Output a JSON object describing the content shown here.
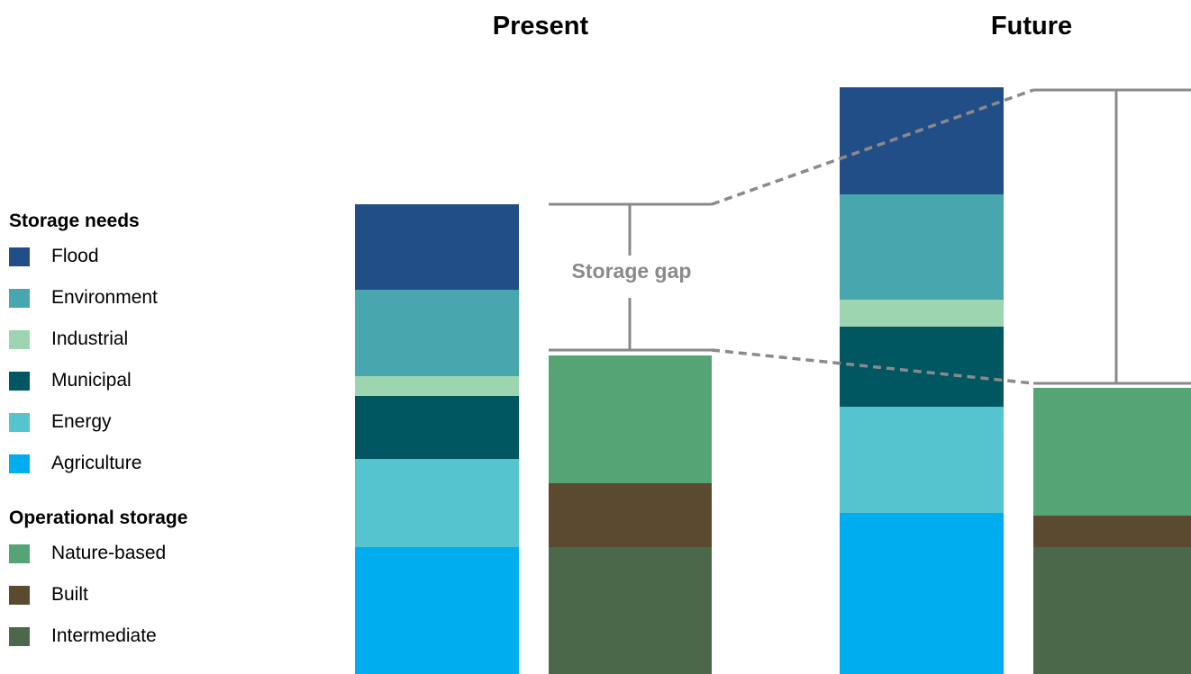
{
  "chart_data": {
    "type": "bar",
    "stacked": true,
    "groups": [
      {
        "title": "Present",
        "bars": [
          {
            "role": "needs",
            "segments": [
              {
                "name": "Agriculture",
                "value": 141
              },
              {
                "name": "Energy",
                "value": 98
              },
              {
                "name": "Municipal",
                "value": 70
              },
              {
                "name": "Industrial",
                "value": 22
              },
              {
                "name": "Environment",
                "value": 96
              },
              {
                "name": "Flood",
                "value": 95
              }
            ]
          },
          {
            "role": "operational",
            "segments": [
              {
                "name": "Intermediate",
                "value": 141
              },
              {
                "name": "Built",
                "value": 71
              },
              {
                "name": "Nature-based",
                "value": 142
              }
            ]
          }
        ],
        "gap_label": "Storage gap"
      },
      {
        "title": "Future",
        "bars": [
          {
            "role": "needs",
            "segments": [
              {
                "name": "Agriculture",
                "value": 179
              },
              {
                "name": "Energy",
                "value": 118
              },
              {
                "name": "Municipal",
                "value": 89
              },
              {
                "name": "Industrial",
                "value": 30
              },
              {
                "name": "Environment",
                "value": 117
              },
              {
                "name": "Flood",
                "value": 119
              }
            ]
          },
          {
            "role": "operational",
            "segments": [
              {
                "name": "Intermediate",
                "value": 141
              },
              {
                "name": "Built",
                "value": 35
              },
              {
                "name": "Nature-based",
                "value": 142
              }
            ]
          }
        ]
      }
    ],
    "legend": [
      {
        "title": "Storage needs",
        "items": [
          {
            "name": "Flood",
            "color": "#224e87"
          },
          {
            "name": "Environment",
            "color": "#47a6ae"
          },
          {
            "name": "Industrial",
            "color": "#9dd5b0"
          },
          {
            "name": "Municipal",
            "color": "#005661"
          },
          {
            "name": "Energy",
            "color": "#56c4cf"
          },
          {
            "name": "Agriculture",
            "color": "#00adef"
          }
        ]
      },
      {
        "title": "Operational storage",
        "items": [
          {
            "name": "Nature-based",
            "color": "#55a475"
          },
          {
            "name": "Built",
            "color": "#5c4a30"
          },
          {
            "name": "Intermediate",
            "color": "#4b684a"
          }
        ]
      }
    ],
    "legend_position": "left",
    "grid": false
  }
}
